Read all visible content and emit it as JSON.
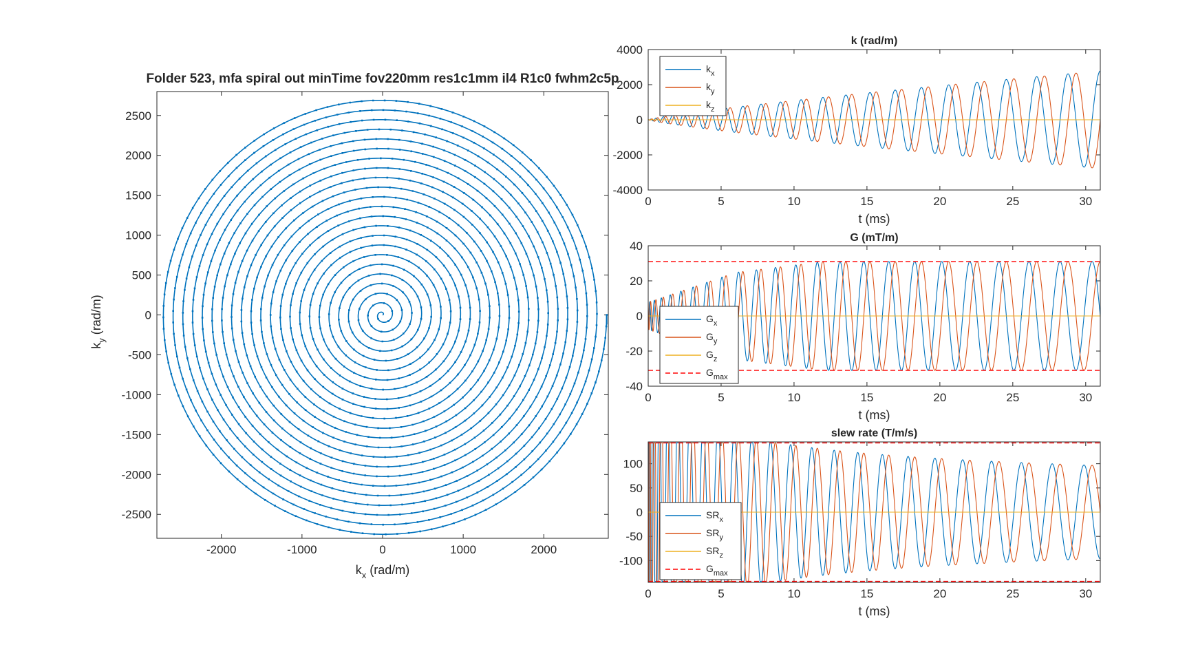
{
  "colors": {
    "x": "#0072BD",
    "y": "#D95319",
    "z": "#EDB120",
    "limit": "#FF0000",
    "axis": "#262626"
  },
  "chart_data": [
    {
      "id": "traj",
      "type": "line",
      "title": "Folder 523, mfa spiral out minTime fov220mm res1c1mm il4 R1c0 fwhm2c5p",
      "xlabel_main": "k",
      "xlabel_sub": "x",
      "xlabel_unit": " (rad/m)",
      "ylabel_main": "k",
      "ylabel_sub": "y",
      "ylabel_unit": " (rad/m)",
      "xlim": [
        -2800,
        2800
      ],
      "ylim": [
        -2800,
        2800
      ],
      "xticks": [
        -2000,
        -1000,
        0,
        1000,
        2000
      ],
      "yticks": [
        -2500,
        -2000,
        -1500,
        -1000,
        -500,
        0,
        500,
        1000,
        1500,
        2000,
        2500
      ],
      "spiral": {
        "turns": 23,
        "k_max": 2780,
        "markers": true,
        "end_point": [
          2780,
          0
        ]
      }
    },
    {
      "id": "k",
      "type": "line",
      "title": "k (rad/m)",
      "xlabel": "t (ms)",
      "xlim": [
        0,
        31
      ],
      "ylim": [
        -4000,
        4000
      ],
      "xticks": [
        0,
        5,
        10,
        15,
        20,
        25,
        30
      ],
      "yticks": [
        -4000,
        -2000,
        0,
        2000,
        4000
      ],
      "legend_position": "top-left",
      "series": [
        {
          "name_main": "k",
          "name_sub": "x",
          "color": "#0072BD",
          "kind": "osc",
          "envelope": "sqrt",
          "amp_end": 2780,
          "phase": 0
        },
        {
          "name_main": "k",
          "name_sub": "y",
          "color": "#D95319",
          "kind": "osc",
          "envelope": "sqrt",
          "amp_end": 2780,
          "phase": -1.5708
        },
        {
          "name_main": "k",
          "name_sub": "z",
          "color": "#EDB120",
          "kind": "const",
          "value": 0
        }
      ]
    },
    {
      "id": "g",
      "type": "line",
      "title": "G (mT/m)",
      "xlabel": "t (ms)",
      "xlim": [
        0,
        31
      ],
      "ylim": [
        -40,
        40
      ],
      "xticks": [
        0,
        5,
        10,
        15,
        20,
        25,
        30
      ],
      "yticks": [
        -40,
        -20,
        0,
        20,
        40
      ],
      "legend_position": "bottom-left",
      "series": [
        {
          "name_main": "G",
          "name_sub": "x",
          "color": "#0072BD",
          "kind": "osc",
          "envelope": "ramp",
          "amp_end": 31,
          "phase": 1.5708
        },
        {
          "name_main": "G",
          "name_sub": "y",
          "color": "#D95319",
          "kind": "osc",
          "envelope": "ramp",
          "amp_end": 31,
          "phase": 0
        },
        {
          "name_main": "G",
          "name_sub": "z",
          "color": "#EDB120",
          "kind": "const",
          "value": 0
        },
        {
          "name_main": "G",
          "name_sub": "max",
          "color": "#FF0000",
          "kind": "limit",
          "value": 31
        }
      ]
    },
    {
      "id": "sr",
      "type": "line",
      "title": "slew rate (T/m/s)",
      "xlabel": "t (ms)",
      "xlim": [
        0,
        31
      ],
      "ylim": [
        -145,
        145
      ],
      "xticks": [
        0,
        5,
        10,
        15,
        20,
        25,
        30
      ],
      "yticks": [
        -100,
        -50,
        0,
        50,
        100
      ],
      "legend_position": "bottom-left",
      "series": [
        {
          "name_main": "SR",
          "name_sub": "x",
          "color": "#0072BD",
          "kind": "osc",
          "envelope": "slew",
          "amp_end": 90,
          "clip": 143,
          "phase": 3.1416
        },
        {
          "name_main": "SR",
          "name_sub": "y",
          "color": "#D95319",
          "kind": "osc",
          "envelope": "slew",
          "amp_end": 90,
          "clip": 143,
          "phase": 1.5708
        },
        {
          "name_main": "SR",
          "name_sub": "z",
          "color": "#EDB120",
          "kind": "const",
          "value": 0
        },
        {
          "name_main": "G",
          "name_sub": "max",
          "color": "#FF0000",
          "kind": "limit",
          "value": 143
        }
      ]
    }
  ]
}
